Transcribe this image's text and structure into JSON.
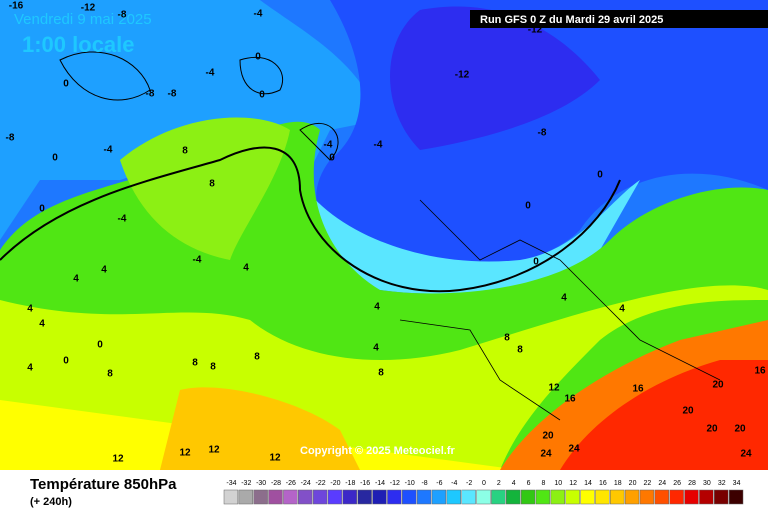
{
  "header": {
    "valid_date": "Vendredi 9 mai 2025",
    "local_time": "1:00 locale",
    "run": "Run GFS 0 Z du Mardi 29 avril 2025"
  },
  "copyright": "Copyright © 2025 Meteociel.fr",
  "footer": {
    "title": "Température 850hPa",
    "lead": "(+ 240h)"
  },
  "legend": {
    "ticks": [
      -34,
      -32,
      -30,
      -28,
      -26,
      -24,
      -22,
      -20,
      -18,
      -16,
      -14,
      -12,
      -10,
      -8,
      -6,
      -4,
      -2,
      0,
      2,
      4,
      6,
      8,
      10,
      12,
      14,
      16,
      18,
      20,
      22,
      24,
      26,
      28,
      30,
      32,
      34
    ],
    "colors": [
      "#d2d2d2",
      "#aaaaaa",
      "#8c6e8c",
      "#a050a0",
      "#b464c8",
      "#8250c8",
      "#6e46dc",
      "#5a3cff",
      "#3c28c8",
      "#2828a0",
      "#1e1eb4",
      "#2d2df0",
      "#1e50ff",
      "#1e78ff",
      "#1ea0ff",
      "#1ec8ff",
      "#5ae6ff",
      "#8cffe6",
      "#28d282",
      "#14b43c",
      "#32c814",
      "#50e614",
      "#8cf014",
      "#c8ff00",
      "#ffff00",
      "#ffe600",
      "#ffc800",
      "#ffa000",
      "#ff7800",
      "#ff5000",
      "#ff2800",
      "#e60000",
      "#b40000",
      "#780000",
      "#3c0000"
    ]
  },
  "contour_labels": [
    -16,
    -12,
    -8,
    -4,
    -12,
    -12,
    -8,
    -8,
    -8,
    -4,
    0,
    0,
    0,
    -4,
    0,
    8,
    -4,
    -4,
    0,
    -8,
    0,
    0,
    8,
    0,
    -4,
    -4,
    4,
    0,
    4,
    4,
    4,
    4,
    4,
    4,
    4,
    0,
    0,
    4,
    4,
    8,
    8,
    8,
    8,
    8,
    8,
    8,
    12,
    16,
    16,
    16,
    20,
    20,
    20,
    20,
    20,
    24,
    24,
    24,
    12,
    12,
    12,
    12
  ]
}
